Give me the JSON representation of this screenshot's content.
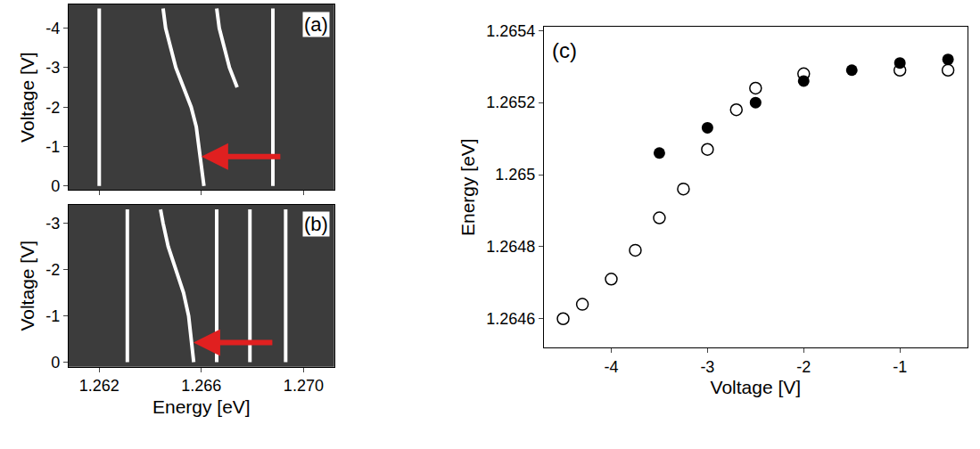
{
  "chart_data": [
    {
      "type": "image_lines",
      "label": "(a)",
      "y_label": "Voltage [V]",
      "xlim": [
        1.2608,
        1.2712
      ],
      "xticks": [
        1.262,
        1.266,
        {
          "value": 1.27,
          "label": "1.270"
        }
      ],
      "ylim": [
        0.1,
        -4.6
      ],
      "yticks": [
        -4,
        -3,
        -2,
        -1,
        0
      ],
      "tick_labels": "y",
      "series": [
        {
          "color": "#ffffff",
          "x": [
            1.262,
            1.262,
            1.262,
            1.262,
            1.262,
            1.262,
            1.262,
            1.262,
            1.262,
            1.262
          ],
          "y": [
            0,
            -0.5,
            -1,
            -1.5,
            -2,
            -2.5,
            -3,
            -3.5,
            -4,
            -4.5
          ]
        },
        {
          "color": "#ffffff",
          "x": [
            1.2661,
            1.266,
            1.2659,
            1.2658,
            1.2656,
            1.2653,
            1.265,
            1.2648,
            1.2646,
            1.2645
          ],
          "y": [
            0,
            -0.5,
            -1,
            -1.5,
            -2,
            -2.5,
            -3,
            -3.5,
            -4,
            -4.5
          ]
        },
        {
          "color": "#ffffff",
          "x": [
            1.2674,
            1.2671,
            1.2669,
            1.2667,
            1.2666
          ],
          "y": [
            -2.5,
            -3,
            -3.5,
            -4,
            -4.5
          ]
        },
        {
          "color": "#ffffff",
          "x": [
            1.2688,
            1.2688,
            1.2688,
            1.2688,
            1.2688,
            1.2688,
            1.2688,
            1.2688,
            1.2688,
            1.2688
          ],
          "y": [
            0,
            -0.5,
            -1,
            -1.5,
            -2,
            -2.5,
            -3,
            -3.5,
            -4,
            -4.5
          ]
        }
      ]
    },
    {
      "type": "image_lines",
      "label": "(b)",
      "y_label": "Voltage [V]",
      "x_label": "Energy [eV]",
      "xlim": [
        1.2608,
        1.2712
      ],
      "xticks": [
        1.262,
        1.266,
        {
          "value": 1.27,
          "label": "1.270"
        }
      ],
      "ylim": [
        0.1,
        -3.4
      ],
      "yticks": [
        -3,
        -2,
        -1,
        0
      ],
      "series": [
        {
          "color": "#ffffff",
          "x": [
            1.2631,
            1.2631,
            1.2631,
            1.2631,
            1.2631,
            1.2631,
            1.2631,
            1.2631
          ],
          "y": [
            0,
            -0.5,
            -1,
            -1.5,
            -2,
            -2.5,
            -3,
            -3.3
          ]
        },
        {
          "color": "#ffffff",
          "x": [
            1.2657,
            1.2656,
            1.2655,
            1.2653,
            1.265,
            1.2647,
            1.2645,
            1.2644
          ],
          "y": [
            0,
            -0.5,
            -1,
            -1.5,
            -2,
            -2.5,
            -3,
            -3.3
          ]
        },
        {
          "color": "#ffffff",
          "x": [
            1.2666,
            1.2666,
            1.2666,
            1.2666,
            1.2666,
            1.2666,
            1.2666,
            1.2666
          ],
          "y": [
            0,
            -0.5,
            -1,
            -1.5,
            -2,
            -2.5,
            -3,
            -3.3
          ]
        },
        {
          "color": "#ffffff",
          "x": [
            1.2679,
            1.2679,
            1.2679,
            1.2679,
            1.2679,
            1.2679,
            1.2679,
            1.2679
          ],
          "y": [
            0,
            -0.5,
            -1,
            -1.5,
            -2,
            -2.5,
            -3,
            -3.3
          ]
        },
        {
          "color": "#ffffff",
          "x": [
            1.2693,
            1.2693,
            1.2693,
            1.2693,
            1.2693,
            1.2693,
            1.2693,
            1.2693
          ],
          "y": [
            0,
            -0.5,
            -1,
            -1.5,
            -2,
            -2.5,
            -3,
            -3.3
          ]
        }
      ]
    },
    {
      "type": "scatter",
      "label": "(c)",
      "x_label": "Voltage [V]",
      "y_label": "Energy [eV]",
      "xlim": [
        -4.7,
        -0.3
      ],
      "xticks": [
        -4,
        -3,
        -2,
        -1
      ],
      "ylim": [
        1.26452,
        1.26541
      ],
      "yticks": [
        1.2646,
        1.2648,
        1.265,
        1.2652,
        1.2654
      ],
      "series": [
        {
          "color": "#000000",
          "marker": "open circle",
          "x": [
            -4.5,
            -4.3,
            -4,
            -3.75,
            -3.5,
            -3.25,
            -3,
            -2.7,
            -2.5,
            -2,
            -1,
            -0.5
          ],
          "values": [
            1.2646,
            1.26464,
            1.26471,
            1.26479,
            1.26488,
            1.26496,
            1.26507,
            1.26518,
            1.26524,
            1.26528,
            1.26529,
            1.26529
          ]
        },
        {
          "color": "#000000",
          "marker": "filled circle",
          "x": [
            -3.5,
            -3,
            -2.5,
            -2,
            -1.5,
            -1,
            -0.5
          ],
          "values": [
            1.26506,
            1.26513,
            1.2652,
            1.26526,
            1.26529,
            1.26531,
            1.26532
          ]
        }
      ]
    }
  ]
}
